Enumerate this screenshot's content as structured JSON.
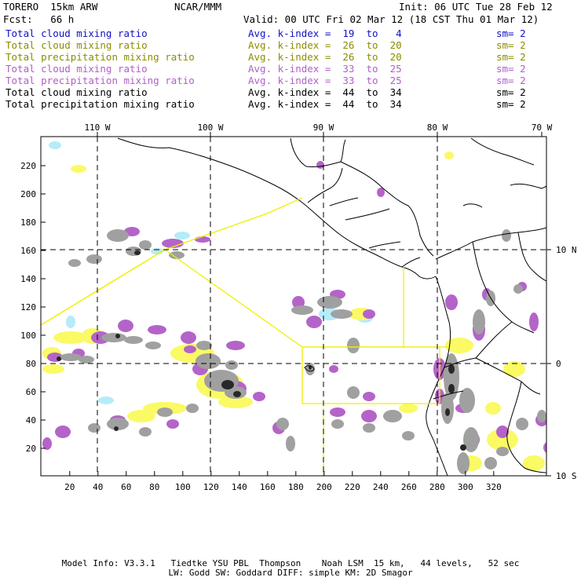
{
  "header": {
    "model": "TORERO  15km ARW",
    "org": "NCAR/MMM",
    "init": "Init: 06 UTC Tue 28 Feb 12",
    "fcst": "Fcst:   66 h",
    "valid": "Valid: 00 UTC Fri 02 Mar 12 (18 CST Thu 01 Mar 12)"
  },
  "legend": [
    {
      "field": "Total cloud mixing ratio",
      "index": "Avg. k-index =  19  to   4",
      "sm": "sm= 2",
      "color": "#1010c8"
    },
    {
      "field": "Total cloud mixing ratio",
      "index": "Avg. k-index =  26  to  20",
      "sm": "sm= 2",
      "color": "#8c8c00"
    },
    {
      "field": "Total precipitation mixing ratio",
      "index": "Avg. k-index =  26  to  20",
      "sm": "sm= 2",
      "color": "#8c8c00"
    },
    {
      "field": "Total cloud mixing ratio",
      "index": "Avg. k-index =  33  to  25",
      "sm": "sm= 2",
      "color": "#b060c8"
    },
    {
      "field": "Total precipitation mixing ratio",
      "index": "Avg. k-index =  33  to  25",
      "sm": "sm= 2",
      "color": "#b060c8"
    },
    {
      "field": "Total cloud mixing ratio",
      "index": "Avg. k-index =  44  to  34",
      "sm": "sm= 2",
      "color": "#000000"
    },
    {
      "field": "Total precipitation mixing ratio",
      "index": "Avg. k-index =  44  to  34",
      "sm": "sm= 2",
      "color": "#000000"
    }
  ],
  "map": {
    "lon_labels": [
      "110 W",
      "100 W",
      "90 W",
      "80 W",
      "70 W"
    ],
    "lat_labels": [
      "10 N",
      "0",
      "10 S"
    ],
    "x_ticks": [
      "20",
      "40",
      "60",
      "80",
      "100",
      "120",
      "140",
      "160",
      "180",
      "200",
      "220",
      "240",
      "260",
      "280",
      "300",
      "320"
    ],
    "y_ticks": [
      "20",
      "40",
      "60",
      "80",
      "100",
      "120",
      "140",
      "160",
      "180",
      "200",
      "220"
    ],
    "colors": {
      "cloud_blue": "#b4ecfa",
      "cloud_yellow": "#fafa64",
      "precip_purple": "#b464c8",
      "cloud_gray": "#a0a0a0",
      "core_dark": "#282828",
      "coast": "#000000",
      "sub_domain": "#f0f000"
    }
  },
  "footer": {
    "line1": "Model Info: V3.3.1   Tiedtke YSU PBL  Thompson    Noah LSM  15 km,   44 levels,   52 sec",
    "line2": "LW: Godd SW: Goddard DIFF: simple KM: 2D Smagor"
  }
}
